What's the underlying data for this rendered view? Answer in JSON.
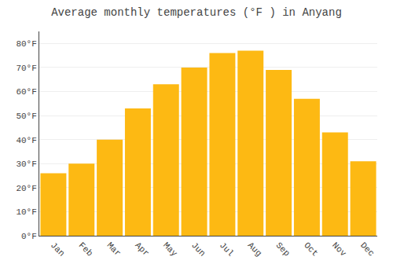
{
  "chart_data": {
    "type": "bar",
    "title": "Average monthly temperatures (°F ) in Anyang",
    "categories": [
      "Jan",
      "Feb",
      "Mar",
      "Apr",
      "May",
      "Jun",
      "Jul",
      "Aug",
      "Sep",
      "Oct",
      "Nov",
      "Dec"
    ],
    "values": [
      26,
      30,
      40,
      53,
      63,
      70,
      76,
      77,
      69,
      57,
      43,
      31
    ],
    "color": "#FDB913",
    "ylim": [
      0,
      85
    ],
    "yticks": [
      {
        "value": 0,
        "label": "0°F"
      },
      {
        "value": 10,
        "label": "10°F"
      },
      {
        "value": 20,
        "label": "20°F"
      },
      {
        "value": 30,
        "label": "30°F"
      },
      {
        "value": 40,
        "label": "40°F"
      },
      {
        "value": 50,
        "label": "50°F"
      },
      {
        "value": 60,
        "label": "60°F"
      },
      {
        "value": 70,
        "label": "70°F"
      },
      {
        "value": 80,
        "label": "80°F"
      }
    ],
    "grid": true
  }
}
